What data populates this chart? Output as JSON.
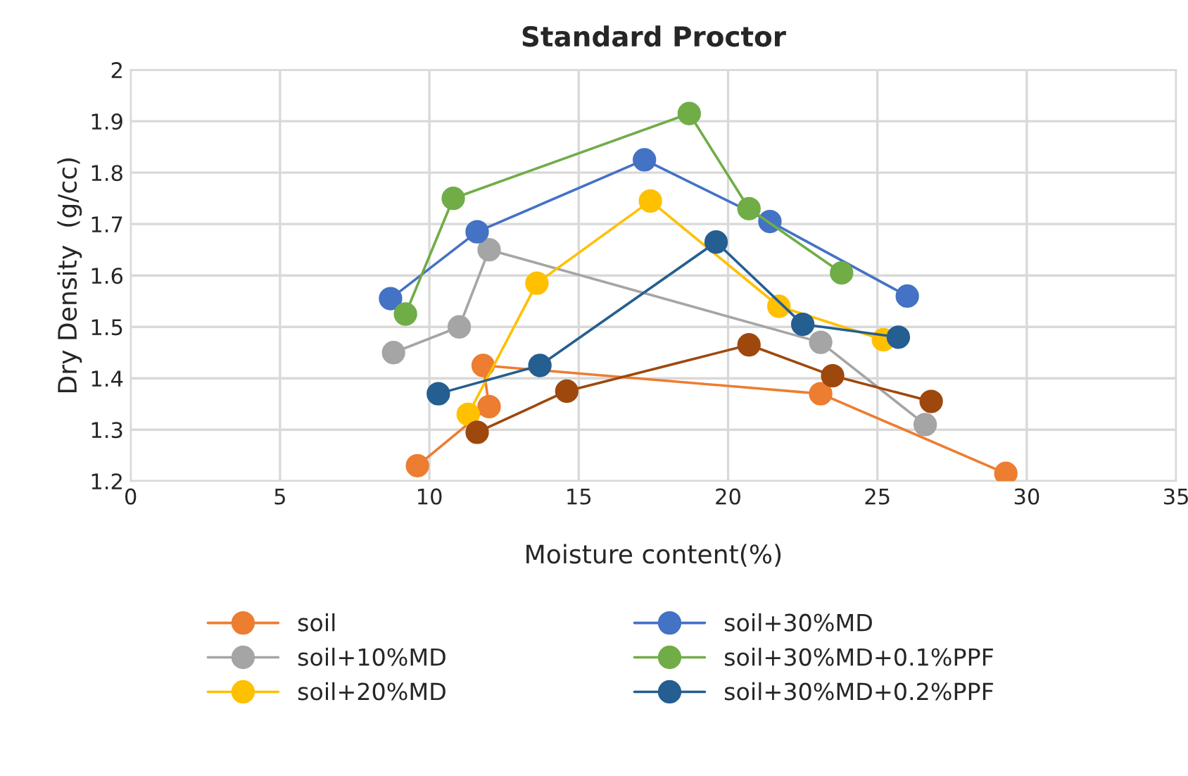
{
  "chart_data": {
    "type": "line",
    "title": "Standard Proctor",
    "xlabel": "Moisture content(%)",
    "ylabel": "Dry Density  (g/cc)",
    "xlim": [
      0,
      35
    ],
    "xticks": [
      0,
      5,
      10,
      15,
      20,
      25,
      30,
      35
    ],
    "ylim": [
      1.2,
      2
    ],
    "yticks": [
      1.2,
      1.3,
      1.4,
      1.5,
      1.6,
      1.7,
      1.8,
      1.9,
      2
    ],
    "grid": true,
    "legend": "bottom",
    "marker": "circle",
    "line_style": "solid",
    "series": [
      {
        "name": "soil",
        "color": "#ed7d31",
        "x": [
          9.6,
          12.0,
          11.8,
          23.1,
          29.3
        ],
        "values": [
          1.23,
          1.345,
          1.425,
          1.37,
          1.215
        ]
      },
      {
        "name": "soil+10%MD",
        "color": "#a5a5a5",
        "x": [
          8.8,
          11.0,
          12.0,
          23.1,
          26.6
        ],
        "values": [
          1.45,
          1.5,
          1.65,
          1.47,
          1.31
        ]
      },
      {
        "name": "soil+20%MD",
        "color": "#ffc000",
        "x": [
          11.3,
          13.6,
          17.4,
          21.7,
          25.2
        ],
        "values": [
          1.33,
          1.585,
          1.745,
          1.54,
          1.475
        ]
      },
      {
        "name": "soil+30%MD",
        "color": "#4472c4",
        "x": [
          8.7,
          11.6,
          17.2,
          21.4,
          26.0
        ],
        "values": [
          1.555,
          1.685,
          1.825,
          1.705,
          1.56
        ]
      },
      {
        "name": "soil+30%MD+0.1%PPF",
        "color": "#70ad47",
        "x": [
          9.2,
          10.8,
          18.7,
          20.7,
          23.8
        ],
        "values": [
          1.525,
          1.75,
          1.915,
          1.73,
          1.605
        ]
      },
      {
        "name": "soil+30%MD+0.2%PPF",
        "color": "#255e91",
        "x": [
          10.3,
          13.7,
          19.6,
          22.5,
          25.7
        ],
        "values": [
          1.37,
          1.425,
          1.665,
          1.505,
          1.48
        ]
      },
      {
        "color": "#9e480e",
        "x": [
          11.6,
          14.6,
          20.7,
          23.5,
          26.8
        ],
        "values": [
          1.295,
          1.375,
          1.465,
          1.405,
          1.355
        ]
      }
    ]
  }
}
